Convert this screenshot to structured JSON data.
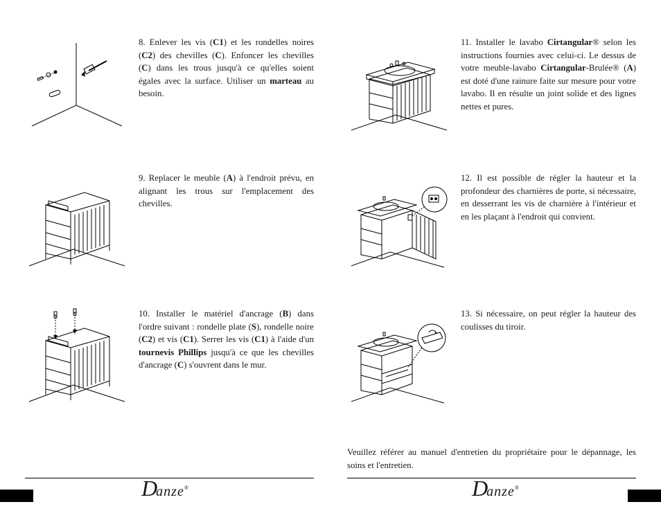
{
  "typography": {
    "body_fontsize_pt": 10,
    "body_lineheight": 1.45,
    "logo_fontsize_pt": 24,
    "color_text": "#1a1a1a",
    "color_bg": "#ffffff",
    "color_rule": "#000000"
  },
  "steps": {
    "s8": "8. Enlever les vis (C1) et les rondelles noires (C2) des chevilles (C). Enfoncer les chevilles (C) dans les trous jusqu'à ce qu'elles soient égales avec la surface. Utiliser un marteau au besoin.",
    "s9": "9. Replacer le meuble (A) à l'endroit prévu, en alignant les trous sur l'emplacement des chevilles.",
    "s10": "10. Installer le matériel d'ancrage (B) dans l'ordre suivant : rondelle plate (S), rondelle noire (C2) et vis (C1). Serrer les vis (C1) à l'aide d'un tournevis Phillips jusqu'à ce que les chevilles d'ancrage (C) s'ouvrent dans le mur.",
    "s11": "11. Installer le lavabo Cirtangular® selon les instructions fournies avec celui-ci. Le dessus de votre meuble-lavabo Cirtangular-Brulée® (A) est doté d'une rainure faite sur mesure pour votre lavabo. Il en résulte un joint solide et des lignes nettes et pures.",
    "s12": "12. Il est possible de régler la hauteur et la profondeur des charnières de porte, si nécessaire, en desserrant les vis de charnière à l'intérieur et en les plaçant à l'endroit qui convient.",
    "s13": "13. Si nécessaire, on peut régler la hauteur des coulisses du tiroir."
  },
  "closing": "Veuillez référer au manuel d'entretien du propriétaire pour le dépannage, les soins et l'entretien.",
  "brand": {
    "first": "D",
    "rest": "anze",
    "tm": "®"
  },
  "bold_terms": [
    "C1",
    "C2",
    "C",
    "A",
    "B",
    "S",
    "marteau",
    "tournevis Phillips",
    "Cirtangular",
    "Cirtangular-Brulée"
  ],
  "illustrations": {
    "stroke": "#000000",
    "stroke_width": 1,
    "style": "isometric line-art",
    "s8": {
      "kind": "hammer-and-anchors-into-wall-corner"
    },
    "s9": {
      "kind": "vanity-cabinet-aligned-to-wall",
      "shelves": 3,
      "panel": "fluted"
    },
    "s10": {
      "kind": "vanity-cabinet-install-anchors",
      "arrows_down": 2
    },
    "s11": {
      "kind": "vanity-with-sink-top"
    },
    "s12": {
      "kind": "vanity-door-open-hinge-adjust",
      "callout": true
    },
    "s13": {
      "kind": "vanity-drawer-slide-adjust",
      "callout": true
    }
  }
}
